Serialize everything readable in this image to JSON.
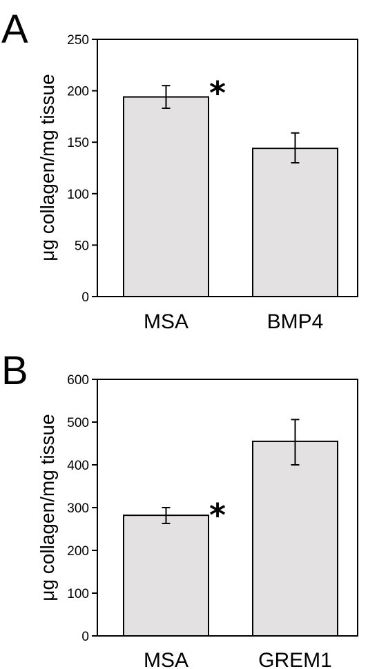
{
  "chart_data": [
    {
      "type": "bar",
      "panel_label": "A",
      "categories": [
        "MSA",
        "BMP4"
      ],
      "values": [
        194,
        144
      ],
      "error_low": [
        183,
        130
      ],
      "error_high": [
        205,
        159
      ],
      "significance": [
        "*",
        ""
      ],
      "ylabel": "μg collagen/mg tissue",
      "xlabel": "",
      "ylim": [
        0,
        250
      ],
      "yticks": [
        0,
        50,
        100,
        150,
        200,
        250
      ],
      "bar_color": "#e4e1e2",
      "grid": false
    },
    {
      "type": "bar",
      "panel_label": "B",
      "categories": [
        "MSA",
        "GREM1"
      ],
      "values": [
        282,
        455
      ],
      "error_low": [
        263,
        400
      ],
      "error_high": [
        300,
        506
      ],
      "significance": [
        "*",
        ""
      ],
      "ylabel": "μg collagen/mg tissue",
      "xlabel": "",
      "ylim": [
        0,
        600
      ],
      "yticks": [
        0,
        100,
        200,
        300,
        400,
        500,
        600
      ],
      "bar_color": "#e4e1e2",
      "grid": false
    }
  ]
}
